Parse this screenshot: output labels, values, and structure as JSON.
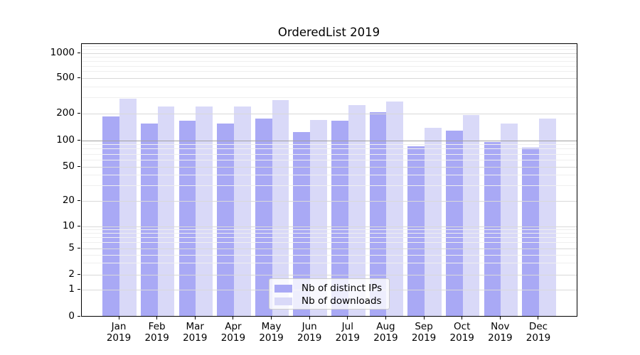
{
  "title": "OrderedList 2019",
  "chart_data": {
    "type": "bar",
    "x_categories": [
      "Jan 2019",
      "Feb 2019",
      "Mar 2019",
      "Apr 2019",
      "May 2019",
      "Jun 2019",
      "Jul 2019",
      "Aug 2019",
      "Sep 2019",
      "Oct 2019",
      "Nov 2019",
      "Dec 2019"
    ],
    "months": [
      "Jan",
      "Feb",
      "Mar",
      "Apr",
      "May",
      "Jun",
      "Jul",
      "Aug",
      "Sep",
      "Oct",
      "Nov",
      "Dec"
    ],
    "year_label": "2019",
    "series": [
      {
        "name": "Nb of distinct IPs",
        "color": "#a9a9f5",
        "values": [
          180,
          150,
          160,
          150,
          170,
          120,
          160,
          200,
          83,
          125,
          93,
          80
        ]
      },
      {
        "name": "Nb of downloads",
        "color": "#d9d9f8",
        "values": [
          285,
          230,
          230,
          230,
          275,
          165,
          240,
          265,
          135,
          185,
          150,
          170
        ]
      }
    ],
    "xlabel": "",
    "ylabel": "",
    "y_scale": "symlog",
    "y_ticks": [
      0,
      1,
      2,
      5,
      10,
      20,
      50,
      100,
      200,
      500,
      1000
    ],
    "y_minor_ticks": [
      3,
      4,
      6,
      7,
      8,
      9,
      30,
      40,
      60,
      70,
      80,
      90,
      300,
      400,
      600,
      700,
      800,
      900,
      1100,
      1200
    ],
    "ylim": [
      0,
      1250
    ],
    "grid": true,
    "legend_position": "lower center",
    "grid_colors": {
      "major": "#d9d9d9",
      "minor": "#efefef",
      "hundred_line": "#a0a0a0"
    }
  },
  "legend": {
    "items": [
      {
        "label": "Nb of distinct IPs"
      },
      {
        "label": "Nb of downloads"
      }
    ]
  }
}
